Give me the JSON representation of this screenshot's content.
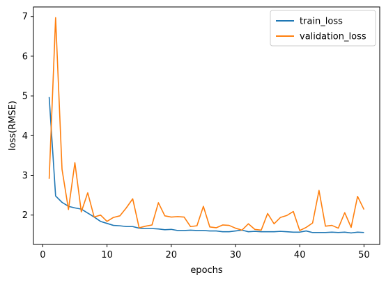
{
  "chart_data": {
    "type": "line",
    "title": "",
    "xlabel": "epochs",
    "ylabel": "loss(RMSE)",
    "xlim": [
      -1.45,
      52.45
    ],
    "ylim": [
      1.26,
      7.24
    ],
    "xticks": [
      0,
      10,
      20,
      30,
      40,
      50
    ],
    "yticks": [
      2,
      3,
      4,
      5,
      6,
      7
    ],
    "grid": false,
    "legend_position": "top-right",
    "x": [
      1,
      2,
      3,
      4,
      5,
      6,
      7,
      8,
      9,
      10,
      11,
      12,
      13,
      14,
      15,
      16,
      17,
      18,
      19,
      20,
      21,
      22,
      23,
      24,
      25,
      26,
      27,
      28,
      29,
      30,
      31,
      32,
      33,
      34,
      35,
      36,
      37,
      38,
      39,
      40,
      41,
      42,
      43,
      44,
      45,
      46,
      47,
      48,
      49,
      50
    ],
    "series": [
      {
        "name": "train_loss",
        "color": "#1f77b4",
        "values": [
          4.97,
          2.48,
          2.32,
          2.22,
          2.18,
          2.15,
          2.05,
          1.95,
          1.84,
          1.79,
          1.74,
          1.73,
          1.71,
          1.71,
          1.67,
          1.66,
          1.66,
          1.65,
          1.63,
          1.64,
          1.61,
          1.61,
          1.62,
          1.61,
          1.61,
          1.6,
          1.6,
          1.58,
          1.58,
          1.6,
          1.62,
          1.58,
          1.59,
          1.58,
          1.58,
          1.58,
          1.59,
          1.58,
          1.57,
          1.57,
          1.6,
          1.56,
          1.56,
          1.56,
          1.57,
          1.56,
          1.57,
          1.55,
          1.57,
          1.56
        ]
      },
      {
        "name": "validation_loss",
        "color": "#ff7f0e",
        "values": [
          2.91,
          6.97,
          3.15,
          2.14,
          3.32,
          2.08,
          2.56,
          1.95,
          2.0,
          1.84,
          1.94,
          1.98,
          2.18,
          2.41,
          1.68,
          1.72,
          1.75,
          2.31,
          1.98,
          1.95,
          1.96,
          1.95,
          1.71,
          1.73,
          2.22,
          1.7,
          1.68,
          1.75,
          1.74,
          1.67,
          1.62,
          1.78,
          1.64,
          1.62,
          2.04,
          1.78,
          1.94,
          1.99,
          2.09,
          1.61,
          1.69,
          1.8,
          2.62,
          1.72,
          1.74,
          1.67,
          2.06,
          1.69,
          2.47,
          2.14
        ]
      }
    ]
  }
}
